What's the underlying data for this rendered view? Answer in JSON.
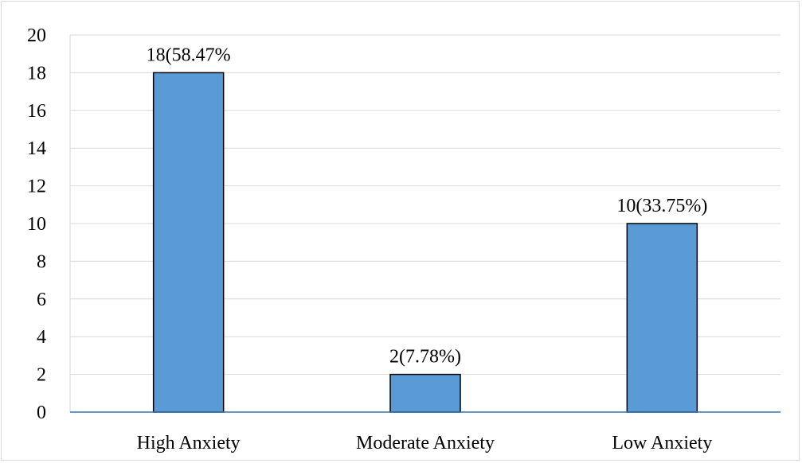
{
  "chart_data": {
    "type": "bar",
    "categories": [
      "High Anxiety",
      "Moderate Anxiety",
      "Low Anxiety"
    ],
    "values": [
      18,
      2,
      10
    ],
    "data_labels": [
      "18(58.47%",
      "2(7.78%)",
      "10(33.75%)"
    ],
    "y_ticks": [
      "0",
      "2",
      "4",
      "6",
      "8",
      "10",
      "12",
      "14",
      "16",
      "18",
      "20"
    ],
    "ylim": [
      0,
      20
    ],
    "grid": true,
    "title": "",
    "xlabel": "",
    "ylabel": ""
  },
  "colors": {
    "bar_fill": "#5b9bd5",
    "bar_stroke": "#000000",
    "grid": "#d9d9d9",
    "axis": "#2e75b6"
  }
}
